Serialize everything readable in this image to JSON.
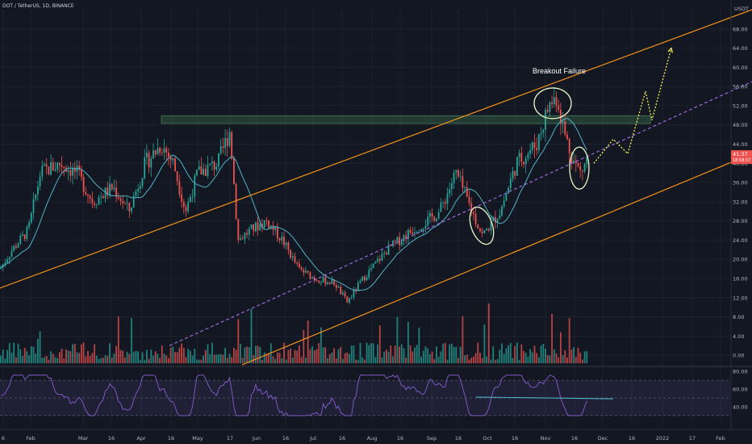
{
  "header": {
    "symbol_title": "DOT / TetherUS, 1D, BINANCE"
  },
  "colors": {
    "background": "#131722",
    "grid": "#1e222d",
    "bull": "#26a69a",
    "bear": "#ef5350",
    "ma": "#4fb3c8",
    "channel": "#f7931a",
    "midline": "#9c6ade",
    "zone_fill": "#2a4a3a",
    "rsi_line": "#7e57c2",
    "rsi_band": "#7e57c2",
    "projection": "#f5f55a",
    "circle": "#e8f5c8",
    "text": "#b2b5be"
  },
  "chart_data": {
    "type": "candlestick",
    "title": "DOT / TetherUS, 1D, BINANCE",
    "price_axis": {
      "unit": "USDT",
      "range": [
        -2,
        72
      ],
      "ticks": [
        "68.00",
        "64.00",
        "60.00",
        "56.00",
        "52.00",
        "48.00",
        "44.00",
        "40.00",
        "36.00",
        "32.00",
        "28.00",
        "24.00",
        "20.00",
        "16.00",
        "12.00",
        "8.00",
        "4.00",
        "0.00"
      ]
    },
    "last_price_labels": [
      "41.37",
      "18:58:57"
    ],
    "time_axis": {
      "ticks": [
        "6",
        "Feb",
        "Mar",
        "16",
        "Apr",
        "16",
        "May",
        "17",
        "Jun",
        "16",
        "Jul",
        "16",
        "Aug",
        "16",
        "Sep",
        "16",
        "Oct",
        "16",
        "Nov",
        "16",
        "Dec",
        "16",
        "2022",
        "17",
        "Feb"
      ]
    },
    "price_path": [
      [
        0,
        18
      ],
      [
        15,
        22
      ],
      [
        35,
        26
      ],
      [
        50,
        38
      ],
      [
        75,
        40
      ],
      [
        95,
        38
      ],
      [
        115,
        32
      ],
      [
        140,
        35
      ],
      [
        160,
        30
      ],
      [
        180,
        40
      ],
      [
        200,
        44
      ],
      [
        215,
        40
      ],
      [
        230,
        30
      ],
      [
        245,
        38
      ],
      [
        270,
        40
      ],
      [
        285,
        47
      ],
      [
        295,
        24
      ],
      [
        310,
        26
      ],
      [
        330,
        28
      ],
      [
        350,
        24
      ],
      [
        370,
        18
      ],
      [
        390,
        16
      ],
      [
        415,
        15
      ],
      [
        430,
        11
      ],
      [
        450,
        16
      ],
      [
        480,
        22
      ],
      [
        510,
        26
      ],
      [
        530,
        28
      ],
      [
        545,
        30
      ],
      [
        565,
        38
      ],
      [
        575,
        34
      ],
      [
        590,
        28
      ],
      [
        598,
        25
      ],
      [
        620,
        30
      ],
      [
        640,
        40
      ],
      [
        665,
        44
      ],
      [
        680,
        52
      ],
      [
        690,
        54
      ],
      [
        700,
        46
      ],
      [
        712,
        40
      ],
      [
        720,
        38
      ],
      [
        728,
        41
      ]
    ],
    "levels": {
      "resistance_zone": [
        48.3,
        49.9
      ],
      "channel_upper": [
        [
          0,
          14
        ],
        [
          932,
          72
        ]
      ],
      "channel_lower": [
        [
          300,
          -2
        ],
        [
          932,
          42
        ]
      ],
      "channel_mid": [
        [
          210,
          2
        ],
        [
          932,
          57
        ]
      ]
    },
    "annotations": [
      {
        "label": "Breakout Failure"
      }
    ],
    "projection": [
      [
        736,
        40
      ],
      [
        760,
        45
      ],
      [
        778,
        42
      ],
      [
        800,
        55
      ],
      [
        808,
        49
      ],
      [
        832,
        64
      ]
    ],
    "rsi": {
      "axis_ticks": [
        "80.00",
        "60.00",
        "40.00"
      ],
      "upper_band": 70,
      "lower_band": 30,
      "range": [
        18,
        82
      ]
    },
    "grid": true,
    "legend": "none"
  }
}
